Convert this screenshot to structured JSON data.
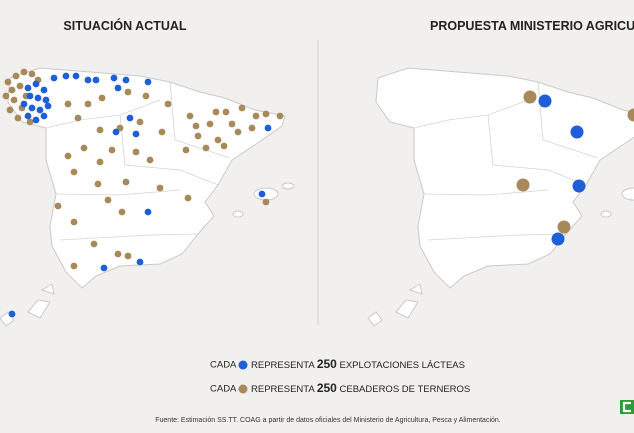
{
  "left_map": {
    "title": "SITUACIÓN ACTUAL"
  },
  "right_map": {
    "title": "PROPUESTA MINISTERIO AGRICULTURA"
  },
  "legend": {
    "items": [
      {
        "prefix": "CADA",
        "verb": "REPRESENTA",
        "count": 250,
        "label": "EXPLOTACIONES LÁCTEAS",
        "color": "#1f5fd6"
      },
      {
        "prefix": "CADA",
        "verb": "REPRESENTA",
        "count": 250,
        "label": "CEBADEROS DE TERNEROS",
        "color": "#a8895a"
      }
    ]
  },
  "source": "Fuente: Estimación SS.TT. COAG a partir de datos oficiales del Ministerio de Agricultura, Pesca y Alimentación."
}
